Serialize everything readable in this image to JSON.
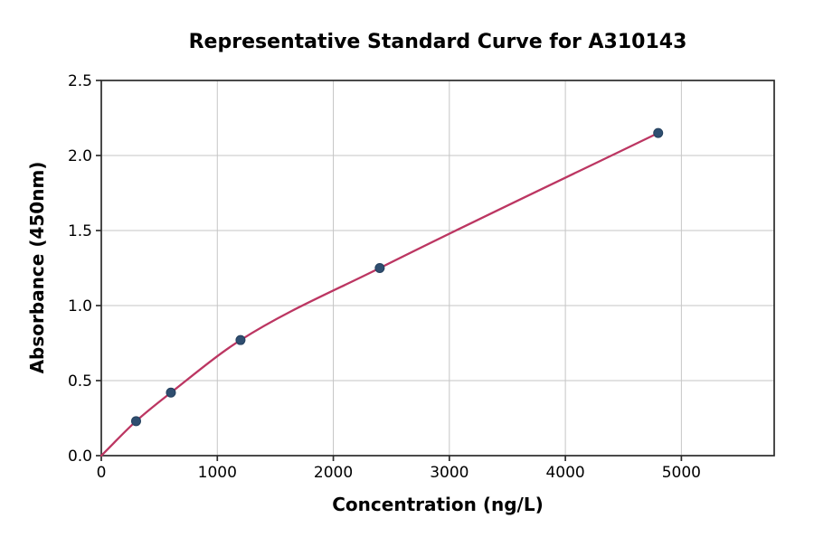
{
  "chart_data": {
    "type": "scatter",
    "title": "Representative Standard Curve for A310143",
    "xlabel": "Concentration (ng/L)",
    "ylabel": "Absorbance (450nm)",
    "xlim": [
      0,
      5800
    ],
    "ylim": [
      0,
      2.5
    ],
    "grid": true,
    "legend": "none",
    "xticks": {
      "values": [
        0,
        1000,
        2000,
        3000,
        4000,
        5000
      ],
      "labels": [
        "0",
        "1000",
        "2000",
        "3000",
        "4000",
        "5000"
      ]
    },
    "yticks": {
      "values": [
        0,
        0.5,
        1.0,
        1.5,
        2.0,
        2.5
      ],
      "labels": [
        "0.0",
        "0.5",
        "1.0",
        "1.5",
        "2.0",
        "2.5"
      ]
    },
    "points": [
      {
        "x": 300,
        "y": 0.23
      },
      {
        "x": 600,
        "y": 0.42
      },
      {
        "x": 1200,
        "y": 0.77
      },
      {
        "x": 2400,
        "y": 1.25
      },
      {
        "x": 4800,
        "y": 2.15
      }
    ],
    "fit_line": [
      {
        "x": 0,
        "y": 0.0
      },
      {
        "x": 300,
        "y": 0.23
      },
      {
        "x": 600,
        "y": 0.42
      },
      {
        "x": 1200,
        "y": 0.77
      },
      {
        "x": 2400,
        "y": 1.25
      },
      {
        "x": 4800,
        "y": 2.15
      }
    ],
    "colors": {
      "line": "#bc3662",
      "marker": "#2f4e70",
      "marker_edge": "#24405e",
      "grid": "#c6c6c6",
      "spine": "#2b2b2b",
      "text": "#000000",
      "background": "#ffffff"
    }
  }
}
